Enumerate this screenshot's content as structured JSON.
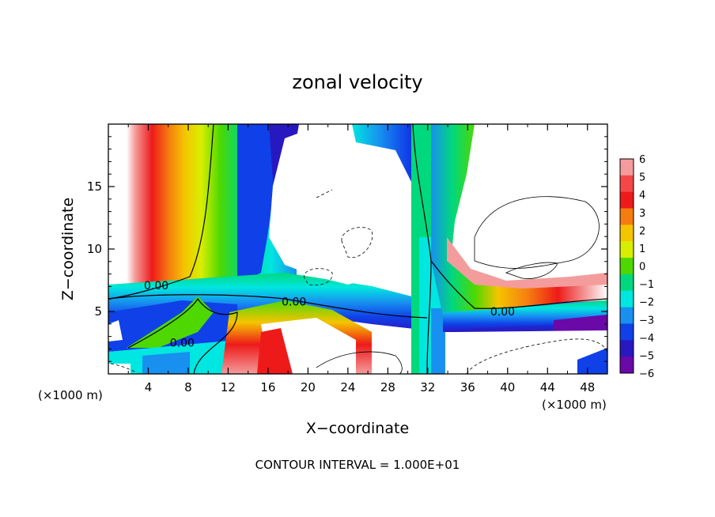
{
  "chart_data": {
    "type": "heatmap",
    "title": "zonal velocity",
    "xlabel": "X−coordinate",
    "ylabel": "Z−coordinate",
    "x_unit_left": "(×1000 m)",
    "x_unit_right": "(×1000 m)",
    "footer": "CONTOUR INTERVAL = 1.000E+01",
    "xlim": [
      0,
      50
    ],
    "ylim": [
      0,
      20
    ],
    "x_ticks": [
      4,
      8,
      12,
      16,
      20,
      24,
      28,
      32,
      36,
      40,
      44,
      48
    ],
    "y_ticks": [
      5,
      10,
      15
    ],
    "colorbar": {
      "levels": [
        6,
        5,
        4,
        3,
        2,
        1,
        0,
        -1,
        -2,
        -3,
        -4,
        -5,
        -6
      ],
      "labels": [
        "6",
        "5",
        "4",
        "3",
        "2",
        "1",
        "0",
        "−1",
        "−2",
        "−3",
        "−4",
        "−5",
        "−6"
      ],
      "colors": [
        "#f49c9c",
        "#f44848",
        "#ee1a1a",
        "#f57d10",
        "#f5c400",
        "#d8ee00",
        "#4ed800",
        "#00d87e",
        "#00e6e0",
        "#1890f0",
        "#1040e8",
        "#2818c0",
        "#6a08a8"
      ]
    },
    "contour_labels": [
      {
        "text": "0.00",
        "x": 4.8,
        "z": 7.1
      },
      {
        "text": "0.00",
        "x": 18.6,
        "z": 5.8
      },
      {
        "text": "0.00",
        "x": 7.4,
        "z": 2.5
      },
      {
        "text": "0.00",
        "x": 39.5,
        "z": 5.0
      }
    ],
    "notes": "Background panel color bands approximated; values are zonal velocity levels shown by the colorbar."
  }
}
